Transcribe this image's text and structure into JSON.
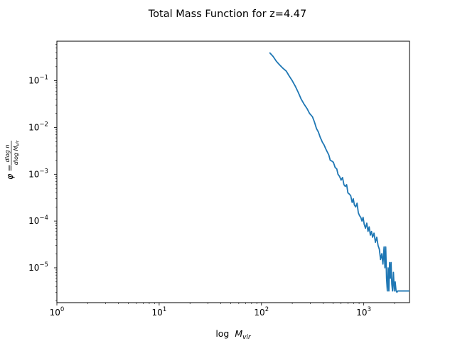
{
  "chart_data": {
    "type": "line",
    "title": "Total Mass Function for z=4.47",
    "xlabel": "log M_vir",
    "ylabel": "φ = dlog n / dlog M_vir",
    "xscale": "log",
    "yscale": "log",
    "xlim": [
      1,
      2800
    ],
    "ylim": [
      1.8e-06,
      0.7
    ],
    "x_ticks": [
      {
        "value": 1,
        "base": "10",
        "exp": "0"
      },
      {
        "value": 10,
        "base": "10",
        "exp": "1"
      },
      {
        "value": 100,
        "base": "10",
        "exp": "2"
      },
      {
        "value": 1000,
        "base": "10",
        "exp": "3"
      }
    ],
    "y_ticks": [
      {
        "value": 1e-05,
        "base": "10",
        "exp": "−5"
      },
      {
        "value": 0.0001,
        "base": "10",
        "exp": "−4"
      },
      {
        "value": 0.001,
        "base": "10",
        "exp": "−3"
      },
      {
        "value": 0.01,
        "base": "10",
        "exp": "−2"
      },
      {
        "value": 0.1,
        "base": "10",
        "exp": "−1"
      }
    ],
    "series": [
      {
        "color": "#1f77b4",
        "points": [
          [
            120,
            0.4
          ],
          [
            130,
            0.33
          ],
          [
            140,
            0.26
          ],
          [
            150,
            0.22
          ],
          [
            160,
            0.19
          ],
          [
            175,
            0.16
          ],
          [
            185,
            0.13
          ],
          [
            200,
            0.1
          ],
          [
            215,
            0.075
          ],
          [
            230,
            0.055
          ],
          [
            245,
            0.04
          ],
          [
            260,
            0.032
          ],
          [
            280,
            0.025
          ],
          [
            295,
            0.02
          ],
          [
            315,
            0.017
          ],
          [
            330,
            0.013
          ],
          [
            345,
            0.0095
          ],
          [
            360,
            0.008
          ],
          [
            375,
            0.0062
          ],
          [
            395,
            0.0048
          ],
          [
            410,
            0.0042
          ],
          [
            425,
            0.0035
          ],
          [
            440,
            0.003
          ],
          [
            455,
            0.0026
          ],
          [
            470,
            0.002
          ],
          [
            490,
            0.0019
          ],
          [
            505,
            0.0018
          ],
          [
            525,
            0.0014
          ],
          [
            545,
            0.0013
          ],
          [
            560,
            0.001
          ],
          [
            580,
            0.0009
          ],
          [
            600,
            0.00075
          ],
          [
            620,
            0.00085
          ],
          [
            640,
            0.0006
          ],
          [
            660,
            0.00055
          ],
          [
            680,
            0.0006
          ],
          [
            700,
            0.0004
          ],
          [
            720,
            0.00038
          ],
          [
            745,
            0.00035
          ],
          [
            770,
            0.00025
          ],
          [
            790,
            0.0003
          ],
          [
            810,
            0.00022
          ],
          [
            835,
            0.0002
          ],
          [
            860,
            0.00024
          ],
          [
            885,
            0.00015
          ],
          [
            910,
            0.00013
          ],
          [
            935,
            0.00012
          ],
          [
            960,
            0.0001
          ],
          [
            985,
            0.00012
          ],
          [
            1010,
            8.5e-05
          ],
          [
            1040,
            7e-05
          ],
          [
            1070,
            9e-05
          ],
          [
            1100,
            6e-05
          ],
          [
            1130,
            7.5e-05
          ],
          [
            1160,
            5e-05
          ],
          [
            1190,
            6e-05
          ],
          [
            1220,
            4.5e-05
          ],
          [
            1260,
            5.5e-05
          ],
          [
            1300,
            3.5e-05
          ],
          [
            1340,
            4.5e-05
          ],
          [
            1380,
            3e-05
          ],
          [
            1420,
            2.5e-05
          ],
          [
            1460,
            1.5e-05
          ],
          [
            1500,
            2e-05
          ],
          [
            1540,
            1.2e-05
          ],
          [
            1580,
            2.8e-05
          ],
          [
            1610,
            1e-05
          ],
          [
            1640,
            2.8e-05
          ],
          [
            1670,
            6e-06
          ],
          [
            1700,
            3.2e-06
          ],
          [
            1730,
            1e-05
          ],
          [
            1760,
            3.2e-06
          ],
          [
            1790,
            1.3e-05
          ],
          [
            1820,
            6e-06
          ],
          [
            1850,
            1.3e-05
          ],
          [
            1880,
            4.5e-06
          ],
          [
            1910,
            3.2e-06
          ],
          [
            1950,
            8e-06
          ],
          [
            1990,
            3.2e-06
          ],
          [
            2030,
            5e-06
          ],
          [
            2070,
            3.2e-06
          ],
          [
            2110,
            3e-06
          ],
          [
            2150,
            3.2e-06
          ],
          [
            2200,
            3.2e-06
          ],
          [
            2300,
            3.2e-06
          ],
          [
            2450,
            3.2e-06
          ],
          [
            2600,
            3.2e-06
          ],
          [
            2800,
            3.2e-06
          ]
        ]
      }
    ]
  }
}
